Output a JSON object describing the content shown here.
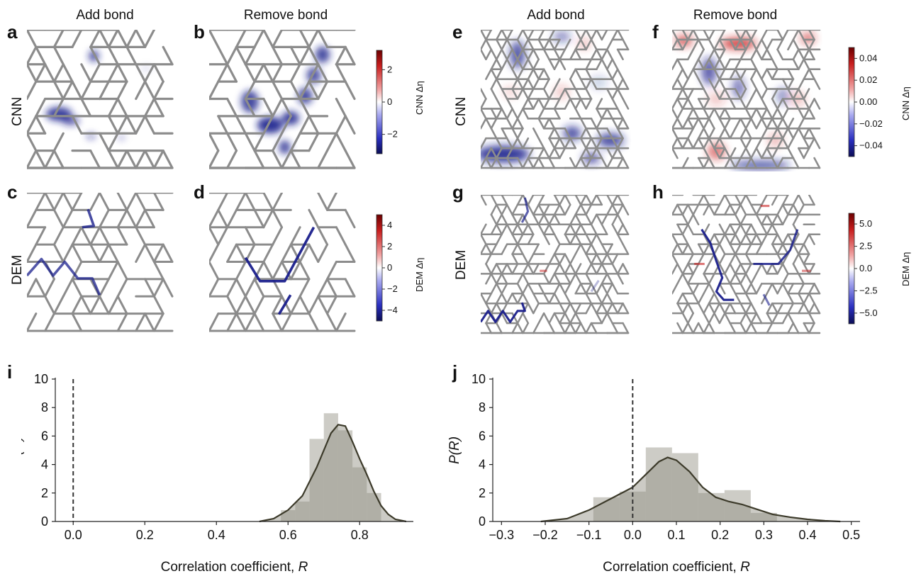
{
  "figure": {
    "panel_letters": [
      "a",
      "b",
      "c",
      "d",
      "e",
      "f",
      "g",
      "h",
      "i",
      "j"
    ],
    "column_titles": {
      "a": "Add bond",
      "b": "Remove bond",
      "e": "Add bond",
      "f": "Remove bond"
    },
    "row_titles": {
      "top_left": "CNN",
      "bottom_left": "DEM",
      "top_right": "CNN",
      "bottom_right": "DEM"
    },
    "colorbars": [
      {
        "id": "cb1",
        "label": "CNN Δη",
        "ticks": [
          "2",
          "0",
          "−2"
        ],
        "tick_values": [
          2,
          0,
          -2
        ],
        "range": [
          -3.2,
          3.2
        ]
      },
      {
        "id": "cb2",
        "label": "DEM Δη",
        "ticks": [
          "4",
          "2",
          "0",
          "−2",
          "−4"
        ],
        "tick_values": [
          4,
          2,
          0,
          -2,
          -4
        ],
        "range": [
          -5,
          5
        ]
      },
      {
        "id": "cb3",
        "label": "CNN Δη",
        "ticks": [
          "0.04",
          "0.02",
          "0.00",
          "−0.02",
          "−0.04"
        ],
        "tick_values": [
          0.04,
          0.02,
          0,
          -0.02,
          -0.04
        ],
        "range": [
          -0.05,
          0.05
        ]
      },
      {
        "id": "cb4",
        "label": "DEM Δη",
        "ticks": [
          "5.0",
          "2.5",
          "0.0",
          "−2.5",
          "−5.0"
        ],
        "tick_values": [
          5,
          2.5,
          0,
          -2.5,
          -5
        ],
        "range": [
          -6.2,
          6.2
        ]
      }
    ],
    "colors": {
      "bond": "#8c8c8c",
      "neg": "#1a1f8c",
      "pos": "#c81e1e",
      "hist": "#b8b7ae",
      "kde": "#3c3a2a"
    }
  },
  "chart_data": [
    {
      "type": "bar",
      "panel": "i",
      "title": "",
      "xlabel": "Correlation coefficient, R",
      "ylabel": "P(R)",
      "xlim": [
        -0.05,
        0.95
      ],
      "ylim": [
        0,
        10
      ],
      "xticks": [
        0.0,
        0.2,
        0.4,
        0.6,
        0.8
      ],
      "xtick_labels": [
        "0.0",
        "0.2",
        "0.4",
        "0.6",
        "0.8"
      ],
      "yticks": [
        0,
        2,
        4,
        6,
        8,
        10
      ],
      "ytick_labels": [
        "0",
        "2",
        "4",
        "6",
        "8",
        "10"
      ],
      "vline": 0.0,
      "histogram": {
        "bin_edges": [
          0.58,
          0.62,
          0.66,
          0.7,
          0.74,
          0.78,
          0.82,
          0.86
        ],
        "values": [
          0.8,
          1.4,
          5.8,
          7.6,
          6.4,
          3.8,
          2.0
        ]
      },
      "kde": {
        "x": [
          0.52,
          0.56,
          0.6,
          0.64,
          0.68,
          0.72,
          0.74,
          0.76,
          0.78,
          0.8,
          0.82,
          0.84,
          0.86,
          0.88,
          0.9,
          0.93
        ],
        "y": [
          0.0,
          0.2,
          0.8,
          1.8,
          3.8,
          6.2,
          6.8,
          6.7,
          5.6,
          4.4,
          3.3,
          2.1,
          1.1,
          0.5,
          0.15,
          0.0
        ]
      }
    },
    {
      "type": "bar",
      "panel": "j",
      "title": "",
      "xlabel": "Correlation coefficient, R",
      "ylabel": "P(R)",
      "xlim": [
        -0.32,
        0.52
      ],
      "ylim": [
        0,
        10
      ],
      "xticks": [
        -0.3,
        -0.2,
        -0.1,
        0.0,
        0.1,
        0.2,
        0.3,
        0.4,
        0.5
      ],
      "xtick_labels": [
        "−0.3",
        "−0.2",
        "−0.1",
        "0.0",
        "0.1",
        "0.2",
        "0.3",
        "0.4",
        "0.5"
      ],
      "yticks": [
        0,
        2,
        4,
        6,
        8,
        10
      ],
      "ytick_labels": [
        "0",
        "2",
        "4",
        "6",
        "8",
        "10"
      ],
      "vline": 0.0,
      "histogram": {
        "bin_edges": [
          -0.09,
          -0.03,
          0.03,
          0.09,
          0.15,
          0.21,
          0.27,
          0.33
        ],
        "values": [
          1.7,
          2.1,
          5.2,
          4.8,
          2.0,
          2.2,
          0.6
        ]
      },
      "kde": {
        "x": [
          -0.21,
          -0.15,
          -0.1,
          -0.05,
          0.0,
          0.03,
          0.06,
          0.08,
          0.1,
          0.13,
          0.16,
          0.19,
          0.22,
          0.25,
          0.28,
          0.32,
          0.36,
          0.4,
          0.44,
          0.475
        ],
        "y": [
          0.0,
          0.2,
          0.8,
          1.6,
          2.4,
          3.3,
          4.2,
          4.5,
          4.3,
          3.5,
          2.4,
          1.7,
          1.4,
          1.2,
          0.9,
          0.5,
          0.3,
          0.15,
          0.05,
          0.0
        ]
      }
    }
  ]
}
